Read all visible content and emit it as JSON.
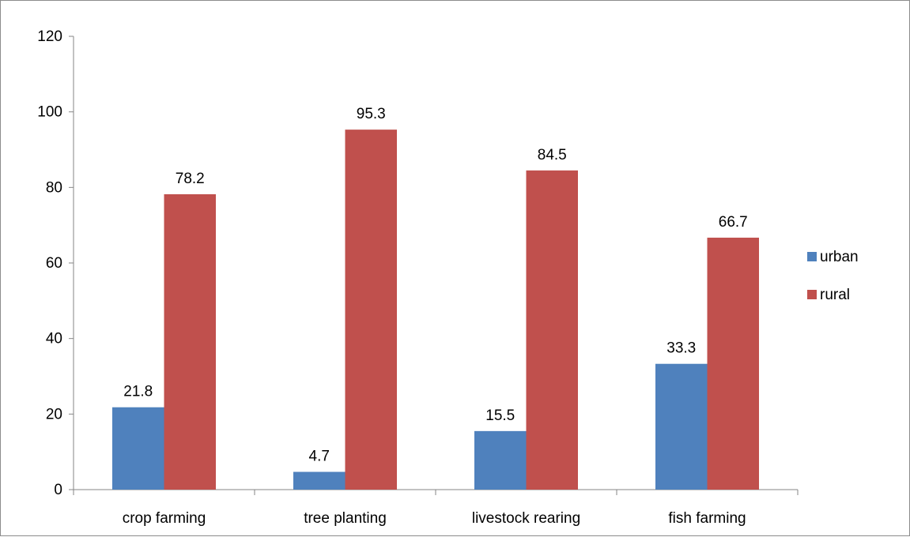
{
  "chart_data": {
    "type": "bar",
    "categories": [
      "crop farming",
      "tree planting",
      "livestock rearing",
      "fish farming"
    ],
    "series": [
      {
        "name": "urban",
        "values": [
          21.8,
          4.7,
          15.5,
          33.3
        ],
        "color": "#4f81bd"
      },
      {
        "name": "rural",
        "values": [
          78.2,
          95.3,
          84.5,
          66.7
        ],
        "color": "#c0504d"
      }
    ],
    "ylim": [
      0,
      120
    ],
    "yticks": [
      0,
      20,
      40,
      60,
      80,
      100,
      120
    ],
    "grid": false,
    "legend": "right",
    "data_labels": true
  }
}
